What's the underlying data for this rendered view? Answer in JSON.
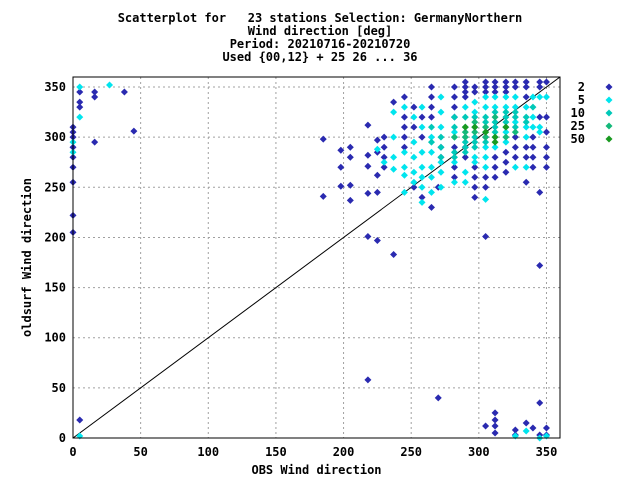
{
  "chart_data": {
    "type": "scatter",
    "title_lines": [
      "Scatterplot for   23 stations Selection: GermanyNorthern",
      "Wind direction [deg]",
      "Period: 20210716-20210720",
      "Used {00,12} + 25 26 ... 36"
    ],
    "xlabel": "OBS Wind direction",
    "ylabel": "oldsurf Wind direction",
    "xlim": [
      0,
      360
    ],
    "ylim": [
      0,
      360
    ],
    "xticks": [
      0,
      50,
      100,
      150,
      200,
      250,
      300,
      350
    ],
    "yticks": [
      0,
      50,
      100,
      150,
      200,
      250,
      300,
      350
    ],
    "grid": true,
    "diagonal_line": true,
    "legend_placement": "right",
    "series": [
      {
        "name": "2",
        "color": "#2a2ab0",
        "points": [
          [
            0,
            310
          ],
          [
            0,
            305
          ],
          [
            0,
            300
          ],
          [
            0,
            290
          ],
          [
            0,
            280
          ],
          [
            0,
            270
          ],
          [
            0,
            255
          ],
          [
            0,
            222
          ],
          [
            0,
            205
          ],
          [
            5,
            345
          ],
          [
            5,
            335
          ],
          [
            5,
            330
          ],
          [
            5,
            18
          ],
          [
            16,
            345
          ],
          [
            16,
            340
          ],
          [
            16,
            295
          ],
          [
            38,
            345
          ],
          [
            45,
            306
          ],
          [
            185,
            298
          ],
          [
            185,
            241
          ],
          [
            198,
            287
          ],
          [
            198,
            270
          ],
          [
            198,
            251
          ],
          [
            205,
            290
          ],
          [
            205,
            280
          ],
          [
            205,
            252
          ],
          [
            205,
            237
          ],
          [
            218,
            312
          ],
          [
            218,
            282
          ],
          [
            218,
            271
          ],
          [
            218,
            244
          ],
          [
            218,
            201
          ],
          [
            218,
            58
          ],
          [
            225,
            297
          ],
          [
            225,
            285
          ],
          [
            225,
            262
          ],
          [
            225,
            245
          ],
          [
            225,
            197
          ],
          [
            230,
            300
          ],
          [
            230,
            290
          ],
          [
            230,
            280
          ],
          [
            230,
            270
          ],
          [
            237,
            335
          ],
          [
            237,
            183
          ],
          [
            245,
            340
          ],
          [
            245,
            320
          ],
          [
            245,
            310
          ],
          [
            245,
            300
          ],
          [
            245,
            290
          ],
          [
            252,
            330
          ],
          [
            252,
            310
          ],
          [
            252,
            250
          ],
          [
            258,
            320
          ],
          [
            258,
            300
          ],
          [
            258,
            240
          ],
          [
            265,
            350
          ],
          [
            265,
            340
          ],
          [
            265,
            330
          ],
          [
            265,
            320
          ],
          [
            265,
            230
          ],
          [
            270,
            40
          ],
          [
            270,
            250
          ],
          [
            272,
            290
          ],
          [
            272,
            280
          ],
          [
            282,
            350
          ],
          [
            282,
            340
          ],
          [
            282,
            330
          ],
          [
            282,
            320
          ],
          [
            282,
            290
          ],
          [
            282,
            270
          ],
          [
            282,
            260
          ],
          [
            290,
            355
          ],
          [
            290,
            350
          ],
          [
            290,
            345
          ],
          [
            290,
            340
          ],
          [
            290,
            290
          ],
          [
            290,
            280
          ],
          [
            297,
            350
          ],
          [
            297,
            345
          ],
          [
            297,
            270
          ],
          [
            297,
            260
          ],
          [
            297,
            250
          ],
          [
            297,
            240
          ],
          [
            305,
            355
          ],
          [
            305,
            350
          ],
          [
            305,
            345
          ],
          [
            305,
            300
          ],
          [
            305,
            260
          ],
          [
            305,
            250
          ],
          [
            305,
            201
          ],
          [
            305,
            12
          ],
          [
            312,
            355
          ],
          [
            312,
            350
          ],
          [
            312,
            345
          ],
          [
            312,
            280
          ],
          [
            312,
            270
          ],
          [
            312,
            260
          ],
          [
            312,
            25
          ],
          [
            312,
            18
          ],
          [
            312,
            12
          ],
          [
            312,
            5
          ],
          [
            320,
            355
          ],
          [
            320,
            350
          ],
          [
            320,
            345
          ],
          [
            320,
            285
          ],
          [
            320,
            275
          ],
          [
            320,
            265
          ],
          [
            327,
            355
          ],
          [
            327,
            350
          ],
          [
            327,
            300
          ],
          [
            327,
            290
          ],
          [
            327,
            280
          ],
          [
            327,
            8
          ],
          [
            327,
            3
          ],
          [
            335,
            355
          ],
          [
            335,
            350
          ],
          [
            335,
            340
          ],
          [
            335,
            290
          ],
          [
            335,
            280
          ],
          [
            335,
            255
          ],
          [
            335,
            15
          ],
          [
            340,
            300
          ],
          [
            340,
            290
          ],
          [
            340,
            280
          ],
          [
            340,
            270
          ],
          [
            340,
            10
          ],
          [
            345,
            355
          ],
          [
            345,
            350
          ],
          [
            345,
            320
          ],
          [
            345,
            245
          ],
          [
            345,
            172
          ],
          [
            345,
            35
          ],
          [
            345,
            3
          ],
          [
            350,
            355
          ],
          [
            350,
            320
          ],
          [
            350,
            305
          ],
          [
            350,
            290
          ],
          [
            350,
            280
          ],
          [
            350,
            270
          ],
          [
            350,
            10
          ],
          [
            350,
            3
          ]
        ]
      },
      {
        "name": "5",
        "color": "#00e5ee",
        "points": [
          [
            0,
            295
          ],
          [
            0,
            285
          ],
          [
            5,
            350
          ],
          [
            5,
            320
          ],
          [
            27,
            352
          ],
          [
            5,
            2
          ],
          [
            225,
            288
          ],
          [
            230,
            275
          ],
          [
            237,
            325
          ],
          [
            237,
            300
          ],
          [
            237,
            280
          ],
          [
            237,
            268
          ],
          [
            245,
            330
          ],
          [
            245,
            285
          ],
          [
            245,
            270
          ],
          [
            245,
            262
          ],
          [
            245,
            245
          ],
          [
            252,
            320
          ],
          [
            252,
            295
          ],
          [
            252,
            280
          ],
          [
            252,
            265
          ],
          [
            252,
            255
          ],
          [
            258,
            330
          ],
          [
            258,
            310
          ],
          [
            258,
            285
          ],
          [
            258,
            270
          ],
          [
            258,
            260
          ],
          [
            258,
            250
          ],
          [
            258,
            235
          ],
          [
            265,
            300
          ],
          [
            265,
            285
          ],
          [
            265,
            270
          ],
          [
            265,
            260
          ],
          [
            265,
            245
          ],
          [
            272,
            340
          ],
          [
            272,
            325
          ],
          [
            272,
            310
          ],
          [
            272,
            275
          ],
          [
            272,
            265
          ],
          [
            272,
            250
          ],
          [
            282,
            305
          ],
          [
            282,
            275
          ],
          [
            282,
            255
          ],
          [
            290,
            330
          ],
          [
            290,
            300
          ],
          [
            290,
            265
          ],
          [
            290,
            255
          ],
          [
            297,
            335
          ],
          [
            297,
            325
          ],
          [
            297,
            280
          ],
          [
            297,
            275
          ],
          [
            305,
            340
          ],
          [
            305,
            330
          ],
          [
            305,
            310
          ],
          [
            305,
            290
          ],
          [
            305,
            280
          ],
          [
            305,
            270
          ],
          [
            305,
            238
          ],
          [
            312,
            340
          ],
          [
            312,
            330
          ],
          [
            312,
            300
          ],
          [
            312,
            290
          ],
          [
            320,
            340
          ],
          [
            320,
            330
          ],
          [
            320,
            305
          ],
          [
            320,
            295
          ],
          [
            327,
            340
          ],
          [
            327,
            330
          ],
          [
            327,
            315
          ],
          [
            327,
            270
          ],
          [
            327,
            2
          ],
          [
            335,
            330
          ],
          [
            335,
            310
          ],
          [
            335,
            300
          ],
          [
            335,
            270
          ],
          [
            335,
            7
          ],
          [
            340,
            340
          ],
          [
            340,
            320
          ],
          [
            340,
            310
          ],
          [
            345,
            340
          ],
          [
            345,
            310
          ],
          [
            345,
            305
          ],
          [
            345,
            0
          ],
          [
            350,
            340
          ],
          [
            350,
            2
          ]
        ]
      },
      {
        "name": "10",
        "color": "#00c8b8",
        "points": [
          [
            265,
            310
          ],
          [
            265,
            295
          ],
          [
            272,
            300
          ],
          [
            272,
            290
          ],
          [
            272,
            280
          ],
          [
            282,
            320
          ],
          [
            282,
            310
          ],
          [
            282,
            300
          ],
          [
            282,
            285
          ],
          [
            282,
            280
          ],
          [
            290,
            320
          ],
          [
            290,
            310
          ],
          [
            290,
            295
          ],
          [
            290,
            290
          ],
          [
            290,
            285
          ],
          [
            297,
            320
          ],
          [
            297,
            310
          ],
          [
            297,
            300
          ],
          [
            297,
            295
          ],
          [
            297,
            290
          ],
          [
            305,
            320
          ],
          [
            305,
            315
          ],
          [
            305,
            305
          ],
          [
            305,
            295
          ],
          [
            312,
            325
          ],
          [
            312,
            315
          ],
          [
            312,
            310
          ],
          [
            312,
            305
          ],
          [
            320,
            325
          ],
          [
            320,
            320
          ],
          [
            320,
            315
          ],
          [
            320,
            310
          ],
          [
            327,
            325
          ],
          [
            327,
            320
          ],
          [
            327,
            310
          ],
          [
            335,
            320
          ],
          [
            335,
            315
          ],
          [
            340,
            330
          ]
        ]
      },
      {
        "name": "25",
        "color": "#14b87a",
        "points": [
          [
            282,
            300
          ],
          [
            290,
            305
          ],
          [
            290,
            300
          ],
          [
            297,
            315
          ],
          [
            297,
            305
          ],
          [
            305,
            310
          ],
          [
            305,
            300
          ],
          [
            312,
            320
          ],
          [
            320,
            300
          ],
          [
            327,
            305
          ]
        ]
      },
      {
        "name": "50",
        "color": "#1a9a20",
        "points": [
          [
            290,
            310
          ],
          [
            297,
            310
          ],
          [
            305,
            305
          ],
          [
            312,
            300
          ],
          [
            320,
            310
          ],
          [
            312,
            295
          ]
        ]
      }
    ]
  }
}
